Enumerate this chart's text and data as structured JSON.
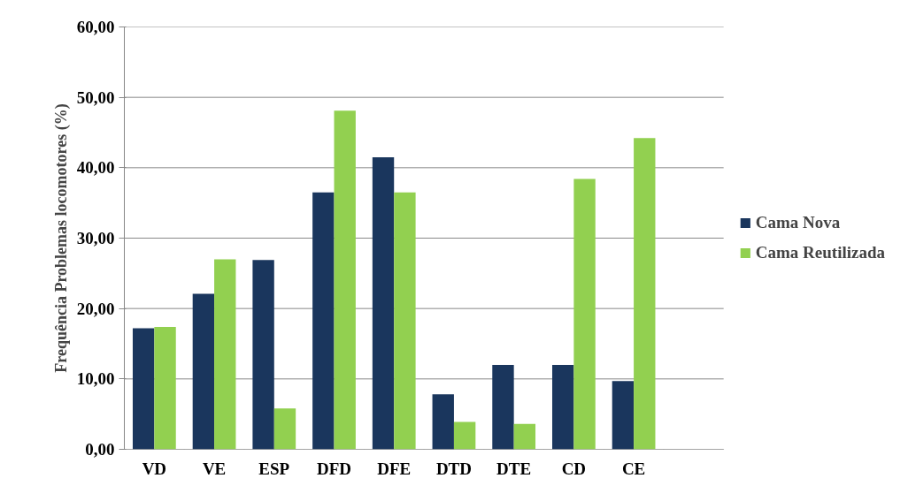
{
  "chart_data": {
    "type": "bar",
    "ylabel": "Frequência Problemas locomotores (%)",
    "categories": [
      "VD",
      "VE",
      "ESP",
      "DFD",
      "DFE",
      "DTD",
      "DTE",
      "CD",
      "CE",
      null
    ],
    "series": [
      {
        "name": "Cama Nova",
        "color": "#1a365d",
        "values": [
          17.2,
          22.1,
          26.9,
          36.5,
          41.5,
          7.8,
          12.0,
          12.0,
          9.7,
          null
        ]
      },
      {
        "name": "Cama Reutilizada",
        "color": "#92d050",
        "values": [
          17.4,
          27.0,
          5.8,
          48.1,
          36.5,
          3.9,
          3.6,
          38.4,
          44.2,
          null
        ]
      }
    ],
    "ylim": [
      0,
      60
    ],
    "yticks": [
      {
        "value": 0,
        "label": "0,00"
      },
      {
        "value": 10,
        "label": "10,00"
      },
      {
        "value": 20,
        "label": "20,00"
      },
      {
        "value": 30,
        "label": "30,00"
      },
      {
        "value": 40,
        "label": "40,00"
      },
      {
        "value": 50,
        "label": "50,00"
      },
      {
        "value": 60,
        "label": "60,00"
      }
    ],
    "grid": "y",
    "legend": "right"
  }
}
